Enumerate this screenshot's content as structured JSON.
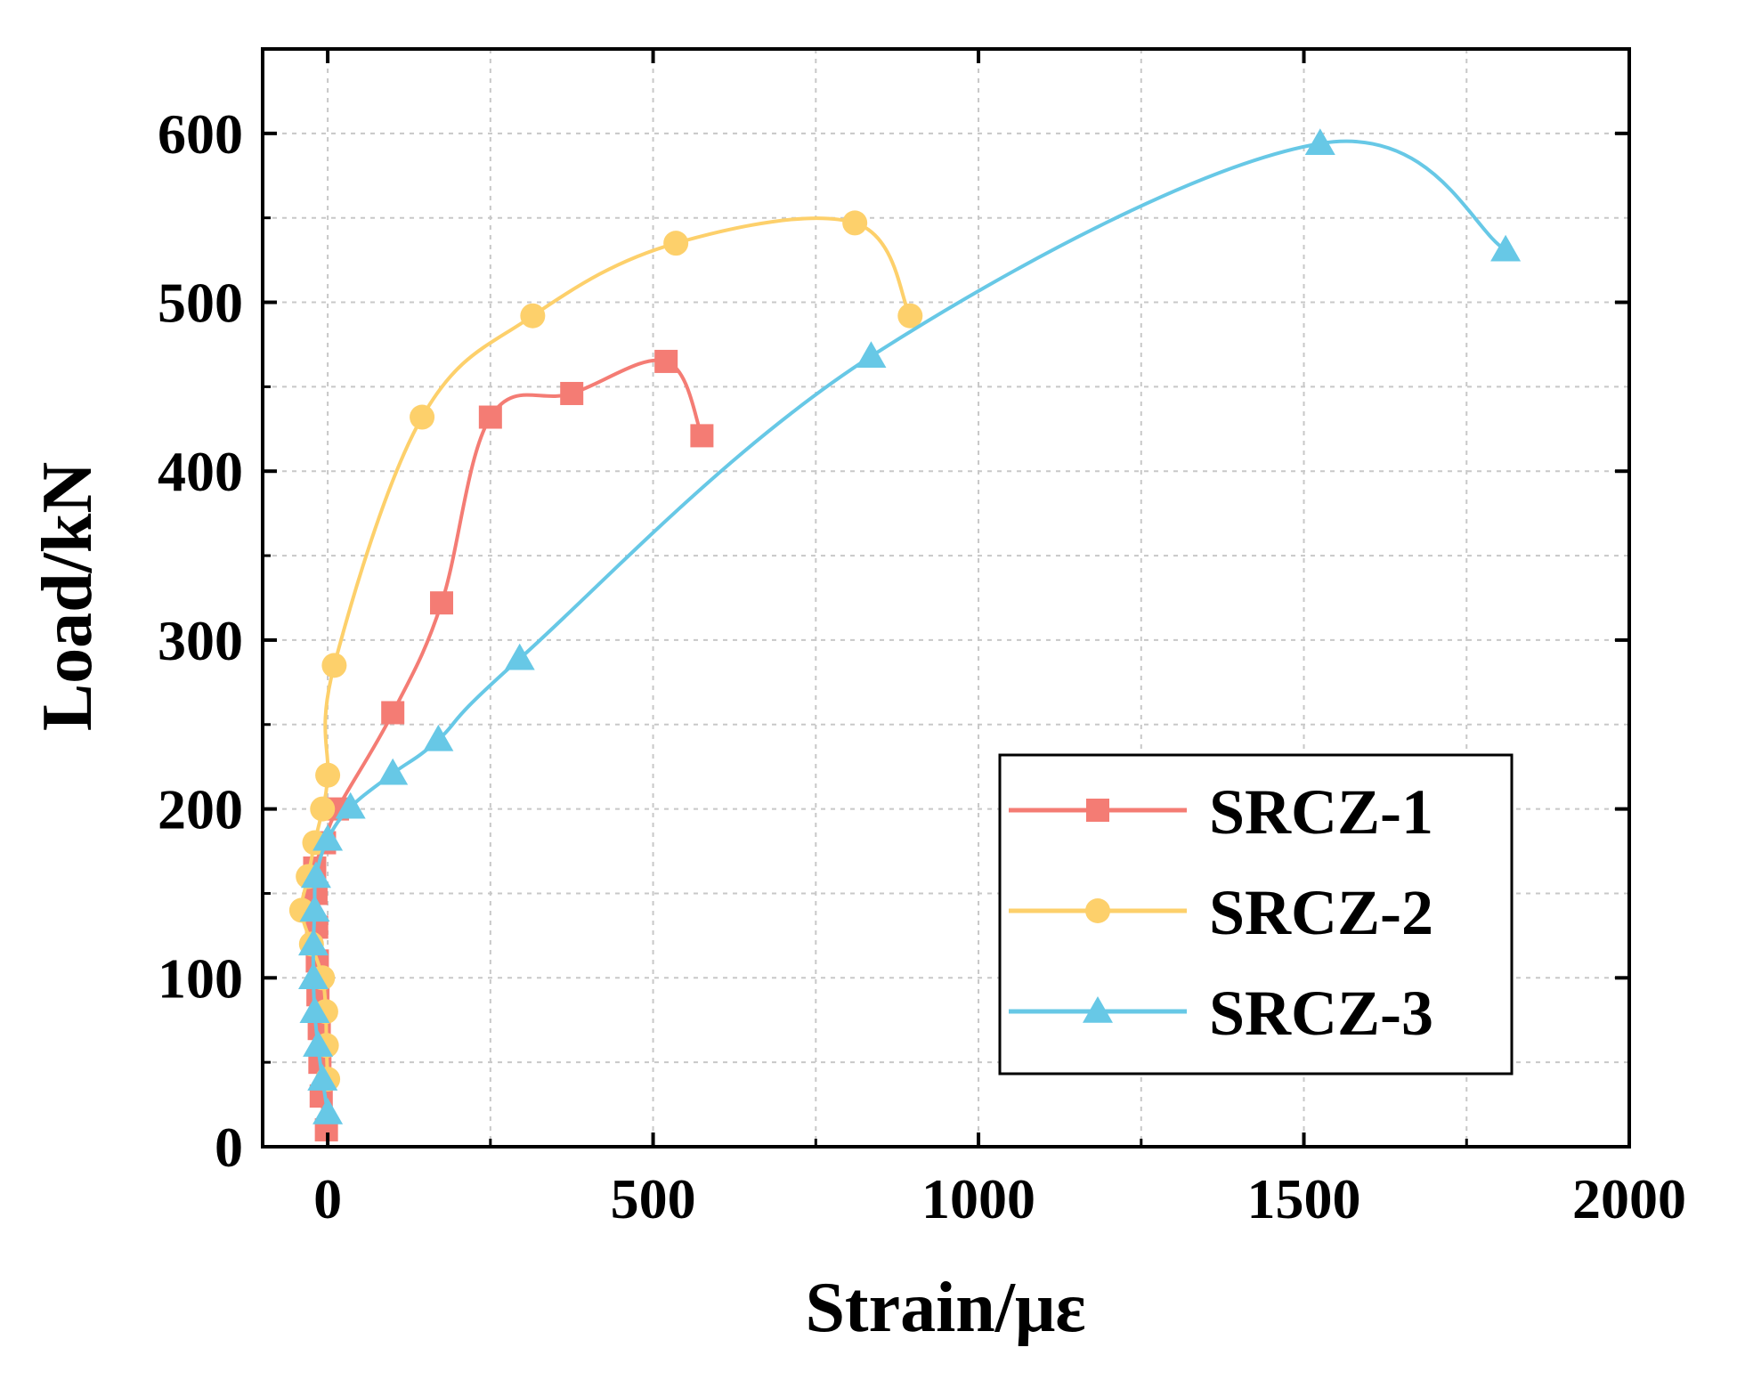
{
  "chart_data": {
    "type": "line",
    "xlabel": "Strain/με",
    "ylabel": "Load/kN",
    "xlim": [
      -100,
      2000
    ],
    "ylim": [
      0,
      650
    ],
    "xticks": [
      0,
      500,
      1000,
      1500,
      2000
    ],
    "yticks": [
      0,
      100,
      200,
      300,
      400,
      500,
      600
    ],
    "xtick_labels": [
      "0",
      "500",
      "1000",
      "1500",
      "2000"
    ],
    "ytick_labels": [
      "0",
      "100",
      "200",
      "300",
      "400",
      "500",
      "600"
    ],
    "grid": true,
    "legend_position": "bottom-right",
    "series": [
      {
        "name": "SRCZ-1",
        "color": "#f47c74",
        "marker": "square",
        "points": [
          [
            -2,
            10
          ],
          [
            -10,
            30
          ],
          [
            -12,
            50
          ],
          [
            -13,
            70
          ],
          [
            -15,
            90
          ],
          [
            -16,
            110
          ],
          [
            -17,
            130
          ],
          [
            -18,
            150
          ],
          [
            -20,
            165
          ],
          [
            -5,
            180
          ],
          [
            15,
            200
          ],
          [
            100,
            257
          ],
          [
            175,
            322
          ],
          [
            250,
            432
          ],
          [
            375,
            446
          ],
          [
            520,
            465
          ],
          [
            575,
            421
          ]
        ]
      },
      {
        "name": "SRCZ-2",
        "color": "#fdd06b",
        "marker": "circle",
        "points": [
          [
            0,
            40
          ],
          [
            -2,
            60
          ],
          [
            -3,
            80
          ],
          [
            -8,
            100
          ],
          [
            -25,
            120
          ],
          [
            -40,
            140
          ],
          [
            -30,
            160
          ],
          [
            -20,
            180
          ],
          [
            -8,
            200
          ],
          [
            0,
            220
          ],
          [
            10,
            285
          ],
          [
            145,
            432
          ],
          [
            315,
            492
          ],
          [
            535,
            535
          ],
          [
            810,
            547
          ],
          [
            895,
            492
          ]
        ]
      },
      {
        "name": "SRCZ-3",
        "color": "#67c8e6",
        "marker": "triangle",
        "points": [
          [
            0,
            20
          ],
          [
            -8,
            40
          ],
          [
            -15,
            60
          ],
          [
            -20,
            80
          ],
          [
            -22,
            100
          ],
          [
            -22,
            120
          ],
          [
            -20,
            140
          ],
          [
            -18,
            160
          ],
          [
            0,
            182
          ],
          [
            35,
            201
          ],
          [
            100,
            221
          ],
          [
            170,
            241
          ],
          [
            295,
            289
          ],
          [
            835,
            468
          ],
          [
            1525,
            594
          ],
          [
            1810,
            531
          ]
        ]
      }
    ]
  }
}
